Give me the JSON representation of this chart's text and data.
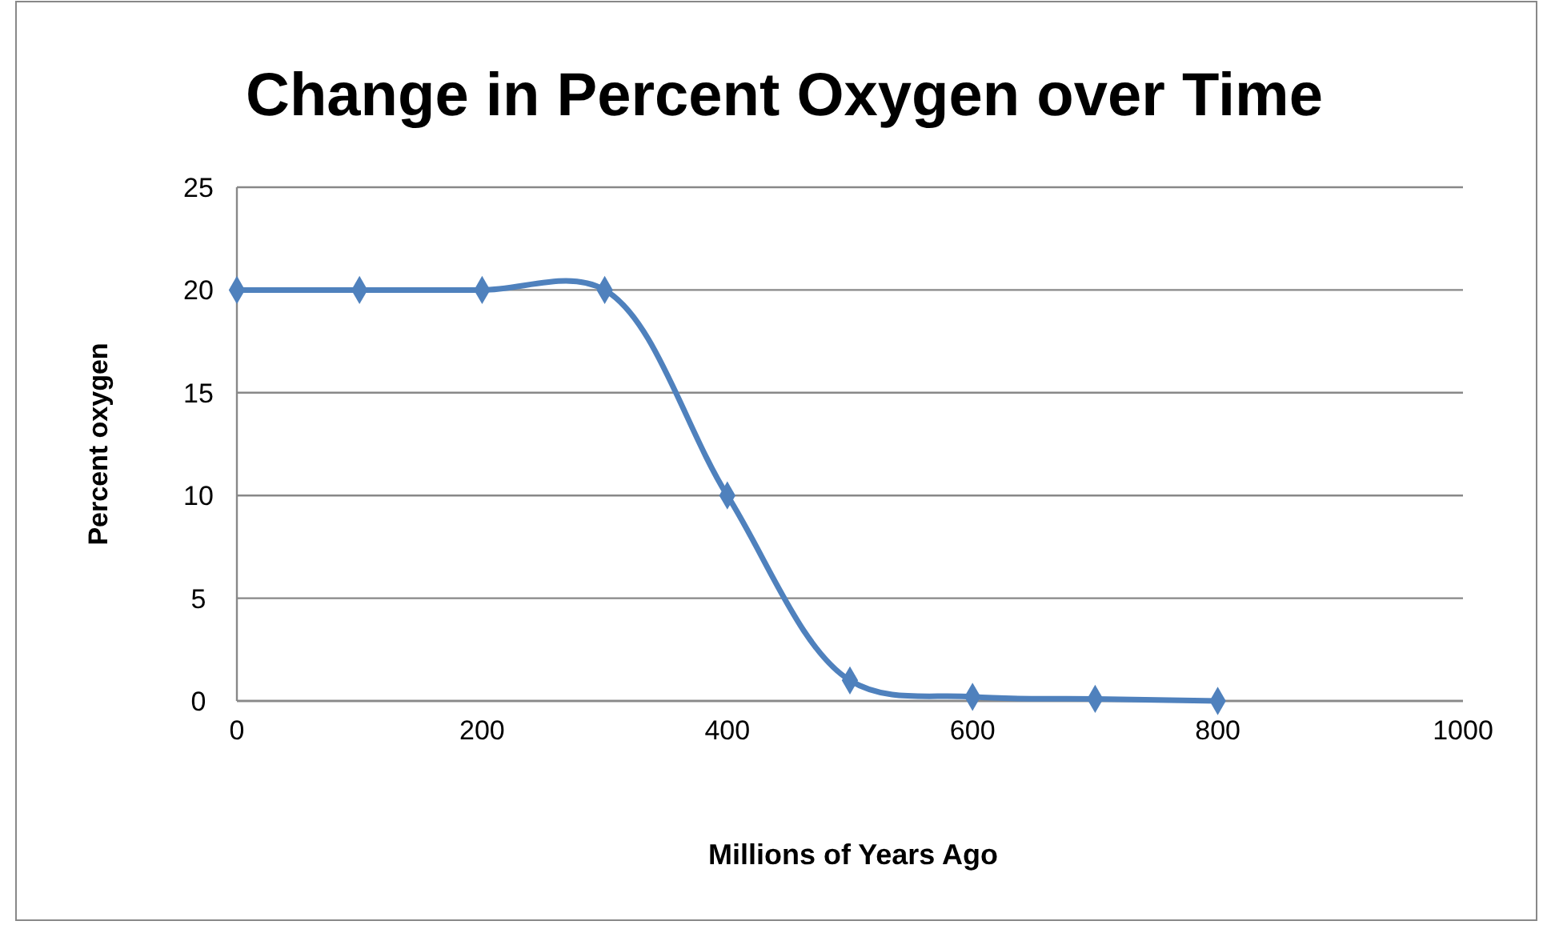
{
  "chart_data": {
    "type": "line",
    "title": "Change in Percent Oxygen over Time",
    "xlabel": "Millions of Years Ago",
    "ylabel": "Percent oxygen",
    "x": [
      0,
      100,
      200,
      300,
      400,
      500,
      600,
      700,
      800
    ],
    "series": [
      {
        "color": "#4f81bd",
        "values": [
          20,
          20,
          20,
          20,
          10,
          1,
          0.2,
          0.1,
          0
        ]
      }
    ],
    "xlim": [
      0,
      1000
    ],
    "xticks": [
      0,
      200,
      400,
      600,
      800,
      1000
    ],
    "ylim": [
      0,
      25
    ],
    "yticks": [
      0,
      5,
      10,
      15,
      20,
      25
    ],
    "grid": "y",
    "marker": "diamond",
    "line_style": "solid"
  }
}
